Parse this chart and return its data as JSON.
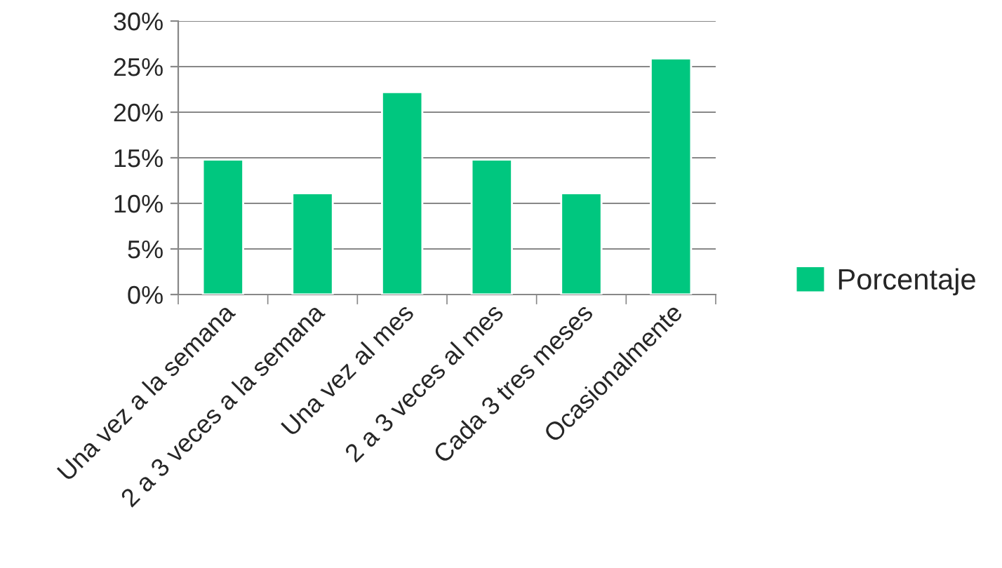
{
  "chart_data": {
    "type": "bar",
    "categories": [
      "Una vez a la semana",
      "2 a 3 veces a la semana",
      "Una vez al mes",
      "2 a 3 veces al mes",
      "Cada 3 tres meses",
      "Ocasionalmente"
    ],
    "series": [
      {
        "name": "Porcentaje",
        "color": "#00c77f",
        "values": [
          14.8,
          11.1,
          22.2,
          14.8,
          11.1,
          25.9
        ]
      }
    ],
    "ylim": [
      0,
      30
    ],
    "yticks": [
      {
        "value": 0,
        "label": "0%"
      },
      {
        "value": 5,
        "label": "5%"
      },
      {
        "value": 10,
        "label": "10%"
      },
      {
        "value": 15,
        "label": "15%"
      },
      {
        "value": 20,
        "label": "20%"
      },
      {
        "value": 25,
        "label": "25%"
      },
      {
        "value": 30,
        "label": "30%"
      }
    ],
    "grid": "y",
    "legend": "right"
  }
}
